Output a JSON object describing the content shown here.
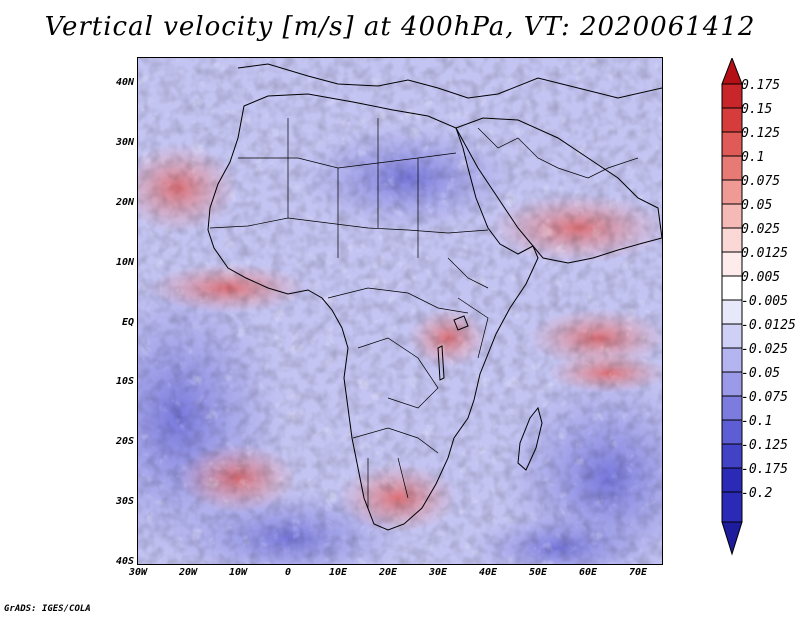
{
  "title": "Vertical velocity [m/s] at 400hPa, VT: 2020061412",
  "lat_labels": [
    "40N",
    "30N",
    "20N",
    "10N",
    "EQ",
    "10S",
    "20S",
    "30S",
    "40S"
  ],
  "lon_labels": [
    "30W",
    "20W",
    "10W",
    "0",
    "10E",
    "20E",
    "30E",
    "40E",
    "50E",
    "60E",
    "70E"
  ],
  "colorbar": {
    "labels": [
      "0.175",
      "0.15",
      "0.125",
      "0.1",
      "0.075",
      "0.05",
      "0.025",
      "0.0125",
      "0.005",
      "-0.005",
      "-0.0125",
      "-0.025",
      "-0.05",
      "-0.075",
      "-0.1",
      "-0.125",
      "-0.175",
      "-0.2"
    ],
    "colors": [
      "#b40f14",
      "#c8262a",
      "#d63c3c",
      "#e05a58",
      "#e87a76",
      "#f09a96",
      "#f6bab6",
      "#fbd8d6",
      "#fdeceb",
      "#ffffff",
      "#e8e8fb",
      "#d0d0f6",
      "#b4b4f0",
      "#9a9ae8",
      "#7c7cdf",
      "#5e5ed4",
      "#4242c6",
      "#2a2ab6",
      "#1c1c9c"
    ]
  },
  "credit": "GrADS: IGES/COLA"
}
